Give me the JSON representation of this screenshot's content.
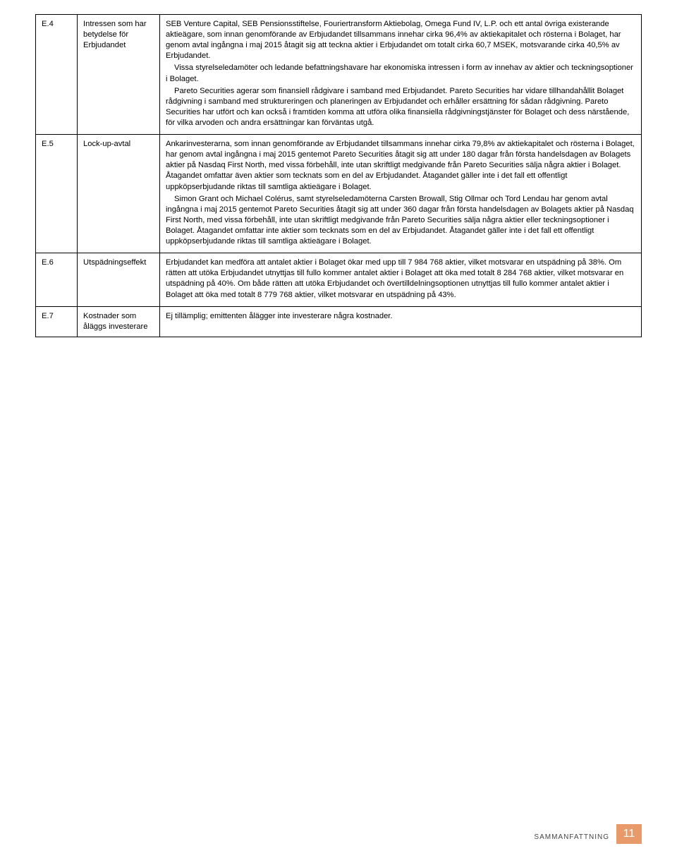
{
  "rows": [
    {
      "code": "E.4",
      "label": "Intressen som har betydelse för Erbjudandet",
      "paragraphs": [
        {
          "indent": false,
          "text": "SEB Venture Capital, SEB Pensionsstiftelse, Fouriertransform Aktiebolag, Omega Fund IV, L.P. och ett antal övriga existerande aktieägare, som innan genomförande av Erbjudandet tillsammans innehar cirka 96,4% av aktiekapitalet och rösterna i Bolaget, har genom avtal ingångna i maj 2015 åtagit sig att teckna aktier i Erbjudandet om totalt cirka 60,7 MSEK, motsvarande cirka 40,5% av Erbjudandet."
        },
        {
          "indent": true,
          "text": "Vissa styrelseledamöter och ledande befattningshavare har ekonomiska intressen i form av innehav av aktier och teckningsoptioner i Bolaget."
        },
        {
          "indent": true,
          "text": "Pareto Securities agerar som finansiell rådgivare i samband med Erbjudandet. Pareto Securities har vidare tillhandahållit Bolaget rådgivning i samband med struktureringen och planeringen av Erbjudandet och erhåller ersättning för sådan rådgivning. Pareto Securities har utfört och kan också i framtiden komma att utföra olika finansiella rådgivningstjänster för Bolaget och dess närstående, för vilka arvoden och andra ersättningar kan förväntas utgå."
        }
      ]
    },
    {
      "code": "E.5",
      "label": "Lock-up-avtal",
      "paragraphs": [
        {
          "indent": false,
          "text": "Ankarinvesterarna, som innan genomförande av Erbjudandet tillsammans innehar cirka 79,8% av aktiekapitalet och rösterna i Bolaget, har genom avtal ingångna i maj 2015 gentemot Pareto Securities åtagit sig att under 180 dagar från första handelsdagen av Bolagets aktier på Nasdaq First North, med vissa förbehåll, inte utan skriftligt medgivande från Pareto Securities sälja några aktier i Bolaget. Åtagandet omfattar även aktier som tecknats som en del av Erbjudandet. Åtagandet gäller inte i det fall ett offentligt uppköpserbjudande riktas till samtliga aktieägare i Bolaget."
        },
        {
          "indent": true,
          "text": "Simon Grant och Michael Colérus, samt styrelseledamöterna Carsten Browall, Stig Ollmar och Tord Lendau har genom avtal ingångna i maj 2015 gentemot Pareto Securities åtagit sig att under 360 dagar från första handelsdagen av Bolagets aktier på Nasdaq First North, med vissa förbehåll, inte utan skriftligt medgivande från Pareto Securities sälja några aktier eller teckningsoptioner i Bolaget. Åtagandet omfattar inte aktier som tecknats som en del av Erbjudandet. Åtagandet gäller inte i det fall ett offentligt uppköpserbjudande riktas till samtliga aktieägare i Bolaget."
        }
      ]
    },
    {
      "code": "E.6",
      "label": "Utspädningseffekt",
      "paragraphs": [
        {
          "indent": false,
          "text": "Erbjudandet kan medföra att antalet aktier i Bolaget ökar med upp till 7 984 768 aktier, vilket motsvarar en utspädning på 38%. Om rätten att utöka Erbjudandet utnyttjas till fullo kommer antalet aktier i Bolaget att öka med totalt 8 284 768 aktier, vilket motsvarar en utspädning på 40%. Om både rätten att utöka Erbjudandet och övertilldelningsoptionen utnyttjas till fullo kommer antalet aktier i Bolaget att öka med totalt 8 779 768 aktier, vilket motsvarar en utspädning på 43%."
        }
      ]
    },
    {
      "code": "E.7",
      "label": "Kostnader som åläggs investerare",
      "paragraphs": [
        {
          "indent": false,
          "text": "Ej tillämplig; emittenten ålägger inte investerare några kostnader."
        }
      ]
    }
  ],
  "footer": {
    "section": "SAMMANFATTNING",
    "page": "11"
  },
  "colors": {
    "accent": "#1f6aa5",
    "page_badge_bg": "#e99a6a",
    "page_badge_fg": "#ffffff"
  }
}
